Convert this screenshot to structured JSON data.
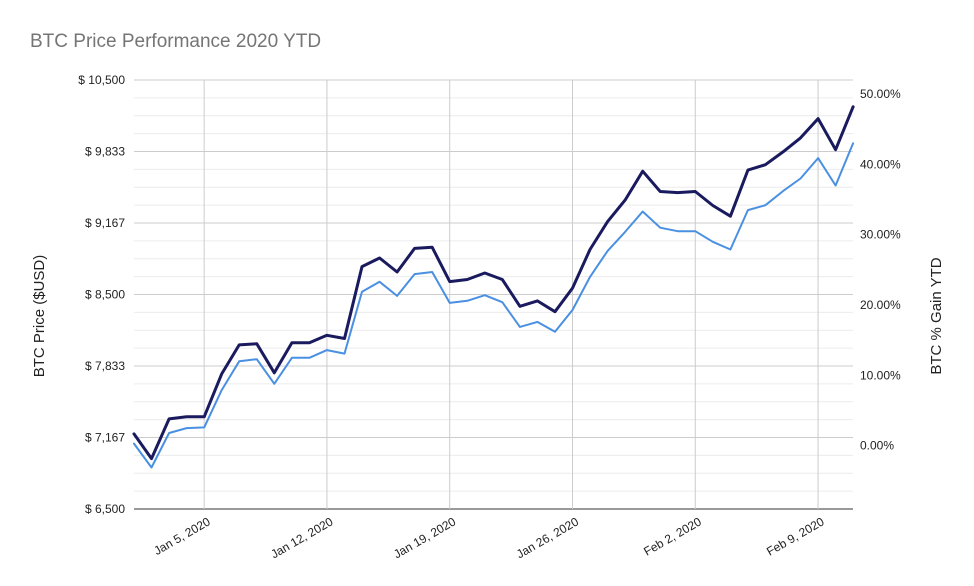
{
  "chart_data": {
    "type": "line",
    "title": "BTC Price Performance 2020 YTD",
    "ylabel_left": "BTC Price ($USD)",
    "ylabel_right": "BTC % Gain YTD",
    "x_start": "Jan 1, 2020",
    "x_end": "Feb 11, 2020",
    "x_tick_labels": [
      "Jan 5, 2020",
      "Jan 12, 2020",
      "Jan 19, 2020",
      "Jan 26, 2020",
      "Feb 2, 2020",
      "Feb 9, 2020"
    ],
    "x_tick_dates": [
      "Jan 5, 2020",
      "Jan 12, 2020",
      "Jan 19, 2020",
      "Jan 26, 2020",
      "Feb 2, 2020",
      "Feb 9, 2020"
    ],
    "ylim_left": [
      6500,
      10500
    ],
    "left_tick_labels": [
      "$ 6,500",
      "$ 7,167",
      "$ 7,833",
      "$ 8,500",
      "$ 9,167",
      "$ 9,833",
      "$ 10,500"
    ],
    "left_tick_values": [
      6500,
      7167,
      7833,
      8500,
      9167,
      9833,
      10500
    ],
    "ylim_right": [
      -0.09,
      0.52
    ],
    "right_tick_labels": [
      "0.00%",
      "10.00%",
      "20.00%",
      "30.00%",
      "40.00%",
      "50.00%"
    ],
    "right_tick_values": [
      0.0,
      0.1,
      0.2,
      0.3,
      0.4,
      0.5
    ],
    "grid": true,
    "legend": "none",
    "dates": [
      "Jan 1, 2020",
      "Jan 2, 2020",
      "Jan 3, 2020",
      "Jan 4, 2020",
      "Jan 5, 2020",
      "Jan 6, 2020",
      "Jan 7, 2020",
      "Jan 8, 2020",
      "Jan 9, 2020",
      "Jan 10, 2020",
      "Jan 11, 2020",
      "Jan 12, 2020",
      "Jan 13, 2020",
      "Jan 14, 2020",
      "Jan 15, 2020",
      "Jan 16, 2020",
      "Jan 17, 2020",
      "Jan 18, 2020",
      "Jan 19, 2020",
      "Jan 20, 2020",
      "Jan 21, 2020",
      "Jan 22, 2020",
      "Jan 23, 2020",
      "Jan 24, 2020",
      "Jan 25, 2020",
      "Jan 26, 2020",
      "Jan 27, 2020",
      "Jan 28, 2020",
      "Jan 29, 2020",
      "Jan 30, 2020",
      "Jan 31, 2020",
      "Feb 1, 2020",
      "Feb 2, 2020",
      "Feb 3, 2020",
      "Feb 4, 2020",
      "Feb 5, 2020",
      "Feb 6, 2020",
      "Feb 7, 2020",
      "Feb 8, 2020",
      "Feb 9, 2020",
      "Feb 10, 2020",
      "Feb 11, 2020"
    ],
    "series": [
      {
        "axis": "left",
        "color": "#1a1a5e",
        "values": [
          7200,
          6970,
          7340,
          7360,
          7360,
          7760,
          8030,
          8040,
          7770,
          8050,
          8050,
          8120,
          8090,
          8760,
          8840,
          8710,
          8930,
          8940,
          8620,
          8640,
          8700,
          8640,
          8390,
          8440,
          8340,
          8560,
          8920,
          9180,
          9380,
          9650,
          9460,
          9450,
          9460,
          9330,
          9230,
          9660,
          9710,
          9830,
          9960,
          10140,
          9850,
          10250
        ]
      },
      {
        "axis": "right",
        "color": "#4a90e2",
        "values": [
          0.003,
          -0.031,
          0.018,
          0.025,
          0.026,
          0.079,
          0.12,
          0.123,
          0.088,
          0.125,
          0.125,
          0.136,
          0.131,
          0.219,
          0.233,
          0.213,
          0.244,
          0.247,
          0.203,
          0.206,
          0.214,
          0.204,
          0.169,
          0.176,
          0.162,
          0.193,
          0.24,
          0.277,
          0.304,
          0.333,
          0.31,
          0.305,
          0.305,
          0.29,
          0.279,
          0.335,
          0.342,
          0.362,
          0.38,
          0.409,
          0.37,
          0.43
        ]
      }
    ]
  }
}
